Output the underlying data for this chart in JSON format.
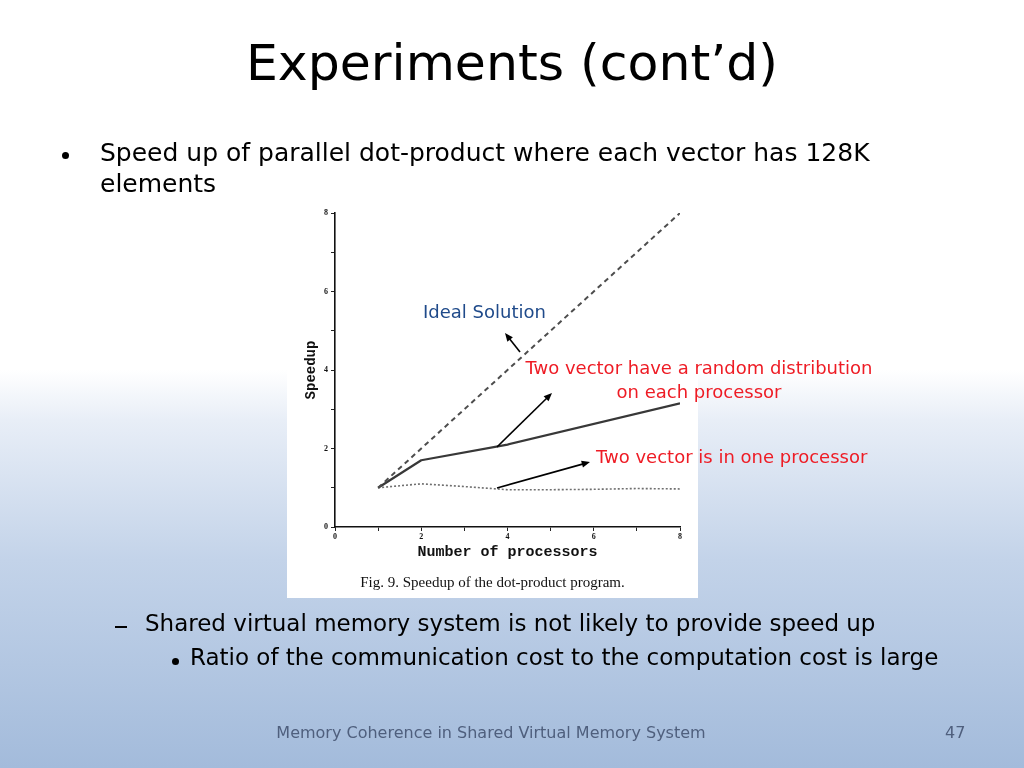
{
  "chart_data": {
    "type": "line",
    "title": "Experiments (cont’d)",
    "subtitle": "Speed up of parallel dot-product where each vector has 128K elements",
    "xlabel": "Number of processors",
    "ylabel": "Speedup",
    "xlim": [
      0,
      8
    ],
    "ylim": [
      0,
      8
    ],
    "xticks": [
      0,
      {
        "value": 1,
        "label": null
      },
      2,
      {
        "value": 3,
        "label": null
      },
      4,
      {
        "value": 5,
        "label": null
      },
      6,
      {
        "value": 7,
        "label": null
      },
      8
    ],
    "yticks": [
      0,
      {
        "value": 1,
        "label": null
      },
      2,
      {
        "value": 3,
        "label": null
      },
      4,
      {
        "value": 5,
        "label": null
      },
      6,
      {
        "value": 7,
        "label": null
      },
      8
    ],
    "marker": "none",
    "series": [
      {
        "type": "line",
        "line_style": "dashed",
        "color": "#4d4d4d",
        "x": [
          1,
          8
        ],
        "values": [
          1,
          8
        ]
      },
      {
        "type": "line",
        "line_style": "solid",
        "color": "#383838",
        "x": [
          1,
          2,
          4,
          8
        ],
        "values": [
          1,
          1.7,
          2.1,
          3.15
        ]
      },
      {
        "type": "line",
        "line_style": "dotted",
        "color": "#707070",
        "x": [
          1,
          2,
          3,
          4,
          5,
          6,
          7,
          8
        ],
        "values": [
          1,
          1.1,
          1.03,
          0.95,
          0.95,
          0.96,
          0.98,
          0.97
        ]
      }
    ],
    "annotations": [
      "Fig. 9. Speedup of the dot-product program.",
      "Shared virtual memory system is not likely to provide speed up",
      "Ratio of the communication cost to the computation cost is large",
      "Memory Coherence in Shared Virtual Memory System",
      "47",
      "Ideal Solution",
      "Two vector have a random distribution on each processor",
      "Two vector is in one processor"
    ]
  }
}
